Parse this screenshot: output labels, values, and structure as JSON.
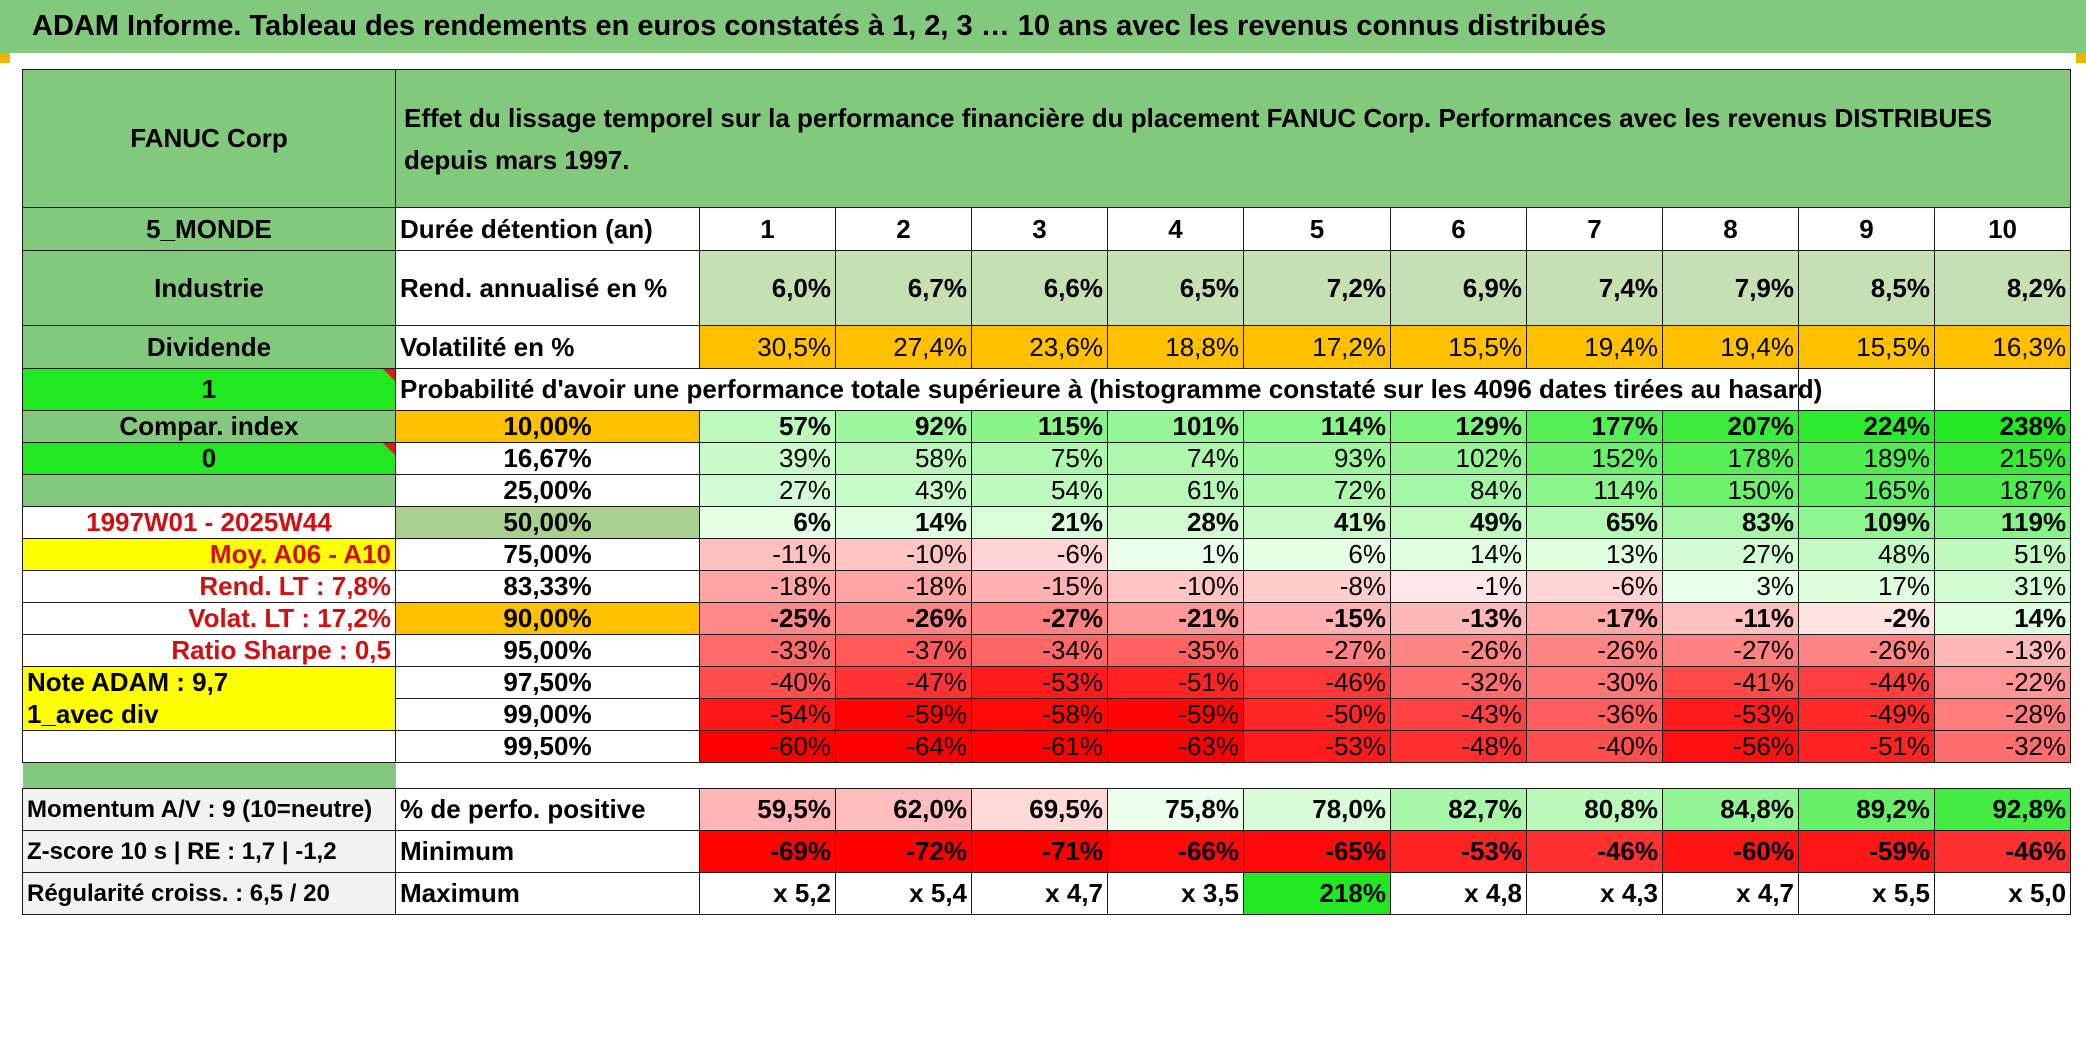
{
  "title": "ADAM Informe. Tableau des rendements en euros constatés à 1, 2, 3 … 10 ans avec les revenus connus distribués",
  "header": {
    "company": "FANUC Corp",
    "description": "Effet du lissage temporel sur la performance financière du placement FANUC Corp. Performances avec les revenus DISTRIBUES depuis mars 1997."
  },
  "left": {
    "zone": "5_MONDE",
    "sector": "Industrie",
    "dividend_label": "Dividende",
    "flag1": "1",
    "compar_index": "Compar. index",
    "flag0": "0",
    "period": "1997W01 - 2025W44",
    "moy": "Moy. A06 - A10",
    "rend_lt": "Rend. LT :   7,8%",
    "volat_lt": "Volat. LT :   17,2%",
    "sharpe": "Ratio Sharpe :   0,5",
    "note": "Note ADAM : 9,7",
    "mode": "1_avec div",
    "momentum": "Momentum A/V : 9 (10=neutre)",
    "zscore": "Z-score 10 s | RE : 1,7 | -1,2",
    "regularite": "Régularité croiss. : 6,5 / 20"
  },
  "labels": {
    "duree": "Durée détention (an)",
    "rend": "Rend. annualisé en %",
    "volat": "Volatilité en %",
    "prob": "Probabilité d'avoir une performance totale supérieure à (histogramme constaté sur les 4096 dates tirées au hasard)",
    "positive": "% de perfo. positive",
    "minimum": "Minimum",
    "maximum": "Maximum"
  },
  "years": [
    "1",
    "2",
    "3",
    "4",
    "5",
    "6",
    "7",
    "8",
    "9",
    "10"
  ],
  "rend": [
    "6,0%",
    "6,7%",
    "6,6%",
    "6,5%",
    "7,2%",
    "6,9%",
    "7,4%",
    "7,9%",
    "8,5%",
    "8,2%"
  ],
  "volat": [
    "30,5%",
    "27,4%",
    "23,6%",
    "18,8%",
    "17,2%",
    "15,5%",
    "19,4%",
    "19,4%",
    "15,5%",
    "16,3%"
  ],
  "quantiles": [
    {
      "q": "10,00%",
      "v": [
        "57%",
        "92%",
        "115%",
        "101%",
        "114%",
        "129%",
        "177%",
        "207%",
        "224%",
        "238%"
      ]
    },
    {
      "q": "16,67%",
      "v": [
        "39%",
        "58%",
        "75%",
        "74%",
        "93%",
        "102%",
        "152%",
        "178%",
        "189%",
        "215%"
      ]
    },
    {
      "q": "25,00%",
      "v": [
        "27%",
        "43%",
        "54%",
        "61%",
        "72%",
        "84%",
        "114%",
        "150%",
        "165%",
        "187%"
      ]
    },
    {
      "q": "50,00%",
      "v": [
        "6%",
        "14%",
        "21%",
        "28%",
        "41%",
        "49%",
        "65%",
        "83%",
        "109%",
        "119%"
      ]
    },
    {
      "q": "75,00%",
      "v": [
        "-11%",
        "-10%",
        "-6%",
        "1%",
        "6%",
        "14%",
        "13%",
        "27%",
        "48%",
        "51%"
      ]
    },
    {
      "q": "83,33%",
      "v": [
        "-18%",
        "-18%",
        "-15%",
        "-10%",
        "-8%",
        "-1%",
        "-6%",
        "3%",
        "17%",
        "31%"
      ]
    },
    {
      "q": "90,00%",
      "v": [
        "-25%",
        "-26%",
        "-27%",
        "-21%",
        "-15%",
        "-13%",
        "-17%",
        "-11%",
        "-2%",
        "14%"
      ]
    },
    {
      "q": "95,00%",
      "v": [
        "-33%",
        "-37%",
        "-34%",
        "-35%",
        "-27%",
        "-26%",
        "-26%",
        "-27%",
        "-26%",
        "-13%"
      ]
    },
    {
      "q": "97,50%",
      "v": [
        "-40%",
        "-47%",
        "-53%",
        "-51%",
        "-46%",
        "-32%",
        "-30%",
        "-41%",
        "-44%",
        "-22%"
      ]
    },
    {
      "q": "99,00%",
      "v": [
        "-54%",
        "-59%",
        "-58%",
        "-59%",
        "-50%",
        "-43%",
        "-36%",
        "-53%",
        "-49%",
        "-28%"
      ]
    },
    {
      "q": "99,50%",
      "v": [
        "-60%",
        "-64%",
        "-61%",
        "-63%",
        "-53%",
        "-48%",
        "-40%",
        "-56%",
        "-51%",
        "-32%"
      ]
    }
  ],
  "positive": [
    "59,5%",
    "62,0%",
    "69,5%",
    "75,8%",
    "78,0%",
    "82,7%",
    "80,8%",
    "84,8%",
    "89,2%",
    "92,8%"
  ],
  "minimum": [
    "-69%",
    "-72%",
    "-71%",
    "-66%",
    "-65%",
    "-53%",
    "-46%",
    "-60%",
    "-59%",
    "-46%"
  ],
  "maximum": [
    "x 5,2",
    "x 5,4",
    "x 4,7",
    "x 3,5",
    "218%",
    "x 4,8",
    "x 4,3",
    "x 4,7",
    "x 5,5",
    "x 5,0"
  ],
  "colors": {
    "header_green": "#82c87d",
    "lime": "#21e821",
    "yellow": "#ffff00",
    "orange": "#ffc000",
    "rend_green": "#c6e0b4",
    "red_text": "#d01010",
    "quantile_highlight": "#a9d08e"
  }
}
